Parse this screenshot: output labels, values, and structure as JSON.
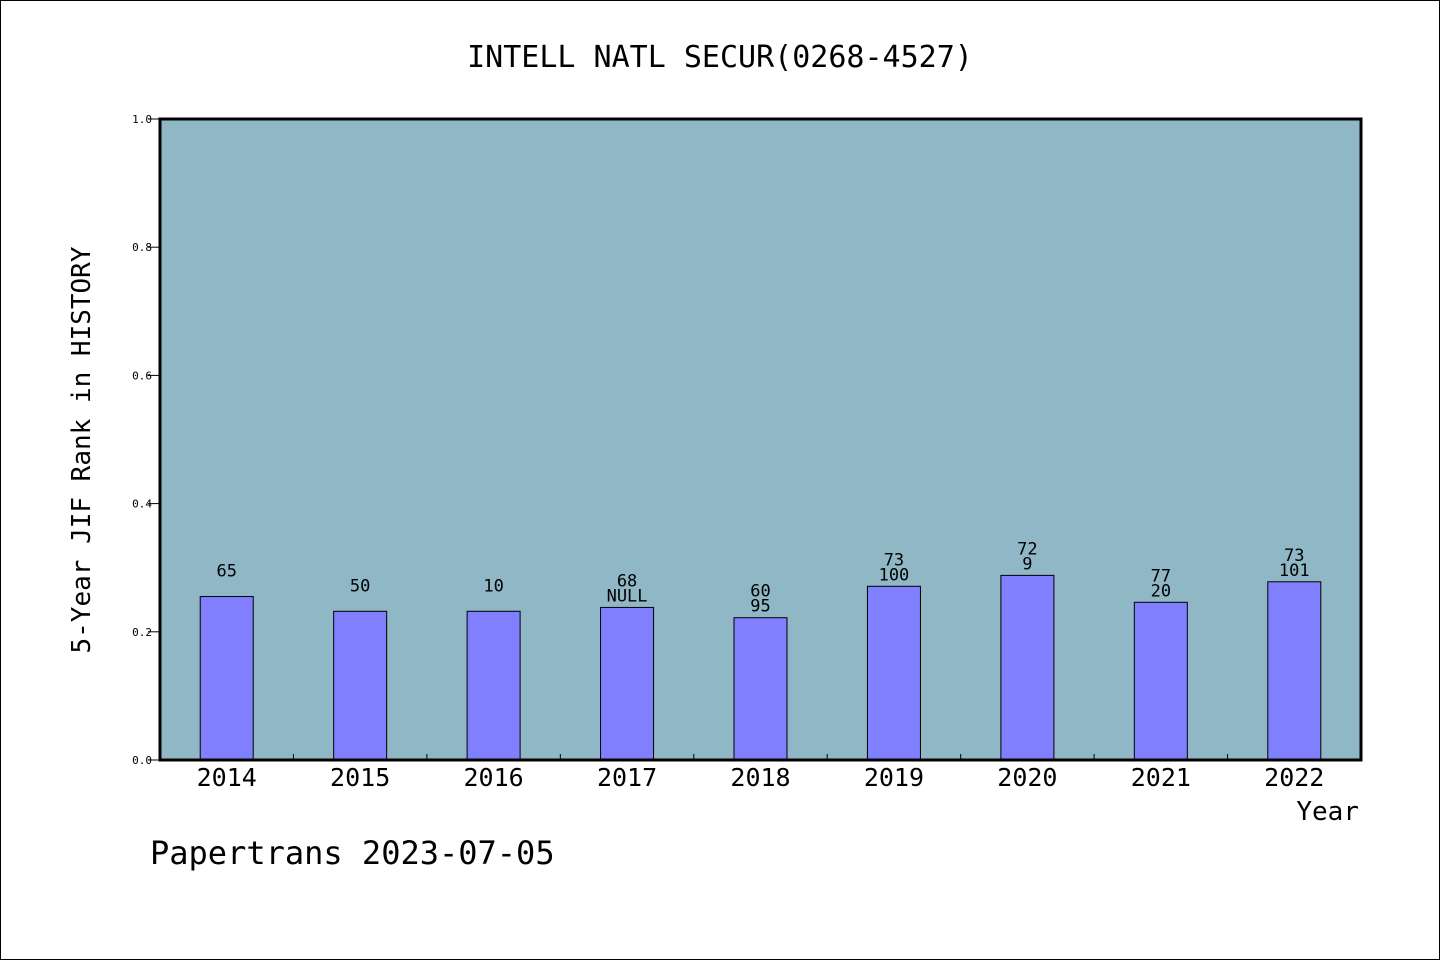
{
  "chart_data": {
    "type": "bar",
    "title": "INTELL NATL SECUR(0268-4527)",
    "xlabel": "Year",
    "ylabel": "5-Year JIF Rank in HISTORY",
    "ylim": [
      0,
      1.0
    ],
    "yticks": [
      "0.0",
      "0.2",
      "0.4",
      "0.6",
      "0.8",
      "1.0"
    ],
    "categories": [
      "2014",
      "2015",
      "2016",
      "2017",
      "2018",
      "2019",
      "2020",
      "2021",
      "2022"
    ],
    "values": [
      0.255,
      0.232,
      0.232,
      0.238,
      0.222,
      0.271,
      0.288,
      0.246,
      0.278
    ],
    "labels_top": [
      "65",
      "50",
      "10",
      "68",
      "60",
      "73",
      "72",
      "77",
      "73"
    ],
    "labels_bottom": [
      "",
      "",
      "",
      "NULL",
      "95",
      "100",
      "9",
      "20",
      "101"
    ],
    "plot_background": "#8fb7c5",
    "bar_color": "#8080ff"
  },
  "footer": "Papertrans 2023-07-05"
}
